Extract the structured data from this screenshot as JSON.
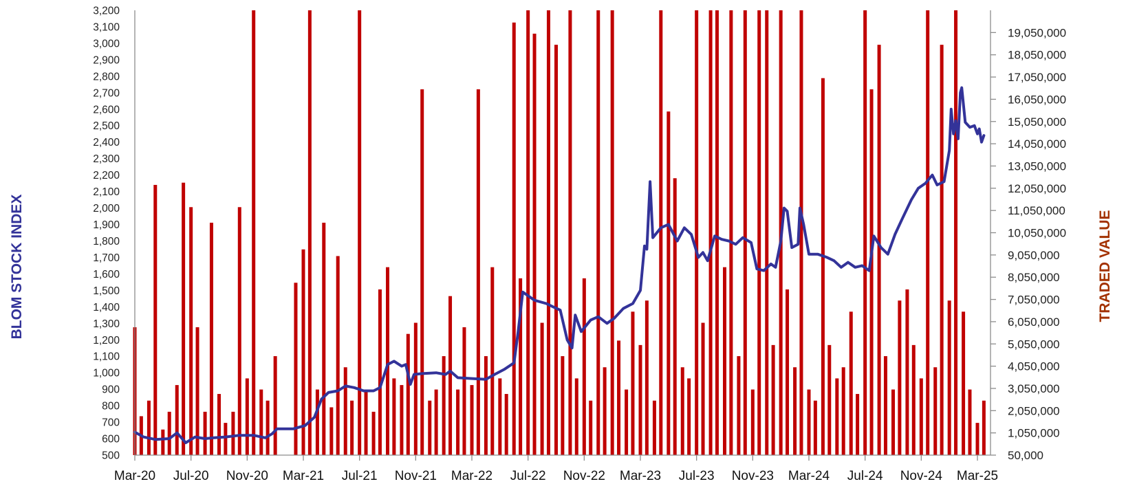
{
  "chart_data": {
    "type": "bar+line",
    "colors": {
      "index_line": "#333399",
      "traded_bars": "#c00000",
      "left_title": "#333399",
      "right_title": "#a33200",
      "axis": "#8c8c8c"
    },
    "left_axis": {
      "title": "BLOM STOCK INDEX",
      "range": [
        500,
        3200
      ],
      "ticks": [
        "500",
        "600",
        "700",
        "800",
        "900",
        "1,000",
        "1,100",
        "1,200",
        "1,300",
        "1,400",
        "1,500",
        "1,600",
        "1,700",
        "1,800",
        "1,900",
        "2,000",
        "2,100",
        "2,200",
        "2,300",
        "2,400",
        "2,500",
        "2,600",
        "2,700",
        "2,800",
        "2,900",
        "3,000",
        "3,100",
        "3,200"
      ]
    },
    "right_axis": {
      "title": "TRADED VALUE",
      "range": [
        50000,
        20050000
      ],
      "ticks": [
        "50,000",
        "1,050,000",
        "2,050,000",
        "3,050,000",
        "4,050,000",
        "5,050,000",
        "6,050,000",
        "7,050,000",
        "8,050,000",
        "9,050,000",
        "10,050,000",
        "11,050,000",
        "12,050,000",
        "13,050,000",
        "14,050,000",
        "15,050,000",
        "16,050,000",
        "17,050,000",
        "18,050,000",
        "19,050,000"
      ]
    },
    "x_axis": {
      "ticks": [
        "Mar-20",
        "Jul-20",
        "Nov-20",
        "Mar-21",
        "Jul-21",
        "Nov-21",
        "Mar-22",
        "Jul-22",
        "Nov-22",
        "Mar-23",
        "Jul-23",
        "Nov-23",
        "Mar-24",
        "Jul-24",
        "Nov-24",
        "Mar-25"
      ],
      "range": [
        "2020-03-01",
        "2025-04-01"
      ]
    },
    "grid": false,
    "legend": "none",
    "index_series": [
      [
        "2020-03-01",
        640
      ],
      [
        "2020-03-20",
        610
      ],
      [
        "2020-04-15",
        595
      ],
      [
        "2020-05-15",
        600
      ],
      [
        "2020-06-01",
        635
      ],
      [
        "2020-06-20",
        575
      ],
      [
        "2020-07-10",
        610
      ],
      [
        "2020-08-01",
        600
      ],
      [
        "2020-08-20",
        605
      ],
      [
        "2020-09-15",
        610
      ],
      [
        "2020-10-15",
        620
      ],
      [
        "2020-11-15",
        620
      ],
      [
        "2020-12-10",
        605
      ],
      [
        "2020-12-25",
        630
      ],
      [
        "2021-01-05",
        660
      ],
      [
        "2021-02-10",
        660
      ],
      [
        "2021-03-05",
        680
      ],
      [
        "2021-03-25",
        730
      ],
      [
        "2021-04-10",
        840
      ],
      [
        "2021-04-25",
        880
      ],
      [
        "2021-05-15",
        890
      ],
      [
        "2021-06-01",
        920
      ],
      [
        "2021-06-20",
        910
      ],
      [
        "2021-07-10",
        890
      ],
      [
        "2021-08-01",
        890
      ],
      [
        "2021-08-15",
        910
      ],
      [
        "2021-09-01",
        1050
      ],
      [
        "2021-09-15",
        1070
      ],
      [
        "2021-10-01",
        1040
      ],
      [
        "2021-10-10",
        1050
      ],
      [
        "2021-10-20",
        930
      ],
      [
        "2021-10-28",
        990
      ],
      [
        "2021-11-15",
        995
      ],
      [
        "2021-12-15",
        1000
      ],
      [
        "2022-01-05",
        990
      ],
      [
        "2022-01-15",
        1010
      ],
      [
        "2022-02-01",
        970
      ],
      [
        "2022-03-01",
        965
      ],
      [
        "2022-04-01",
        960
      ],
      [
        "2022-04-20",
        990
      ],
      [
        "2022-05-10",
        1020
      ],
      [
        "2022-06-01",
        1060
      ],
      [
        "2022-06-10",
        1250
      ],
      [
        "2022-06-20",
        1490
      ],
      [
        "2022-07-15",
        1440
      ],
      [
        "2022-08-10",
        1420
      ],
      [
        "2022-08-25",
        1400
      ],
      [
        "2022-09-10",
        1380
      ],
      [
        "2022-09-25",
        1200
      ],
      [
        "2022-10-05",
        1150
      ],
      [
        "2022-10-12",
        1350
      ],
      [
        "2022-10-25",
        1250
      ],
      [
        "2022-11-15",
        1320
      ],
      [
        "2022-12-01",
        1340
      ],
      [
        "2022-12-20",
        1300
      ],
      [
        "2023-01-05",
        1330
      ],
      [
        "2023-01-25",
        1390
      ],
      [
        "2023-02-15",
        1420
      ],
      [
        "2023-03-01",
        1500
      ],
      [
        "2023-03-10",
        1770
      ],
      [
        "2023-03-15",
        1750
      ],
      [
        "2023-03-22",
        2160
      ],
      [
        "2023-03-28",
        1820
      ],
      [
        "2023-04-15",
        1880
      ],
      [
        "2023-05-01",
        1900
      ],
      [
        "2023-05-20",
        1800
      ],
      [
        "2023-06-05",
        1880
      ],
      [
        "2023-06-20",
        1840
      ],
      [
        "2023-07-05",
        1700
      ],
      [
        "2023-07-15",
        1730
      ],
      [
        "2023-07-25",
        1680
      ],
      [
        "2023-08-10",
        1830
      ],
      [
        "2023-08-25",
        1810
      ],
      [
        "2023-09-10",
        1800
      ],
      [
        "2023-09-25",
        1780
      ],
      [
        "2023-10-10",
        1820
      ],
      [
        "2023-10-28",
        1790
      ],
      [
        "2023-11-10",
        1630
      ],
      [
        "2023-11-25",
        1620
      ],
      [
        "2023-12-10",
        1660
      ],
      [
        "2023-12-20",
        1640
      ],
      [
        "2024-01-01",
        1800
      ],
      [
        "2024-01-08",
        2000
      ],
      [
        "2024-01-15",
        1980
      ],
      [
        "2024-01-25",
        1760
      ],
      [
        "2024-02-08",
        1780
      ],
      [
        "2024-02-12",
        2000
      ],
      [
        "2024-02-20",
        1900
      ],
      [
        "2024-03-01",
        1720
      ],
      [
        "2024-03-20",
        1720
      ],
      [
        "2024-04-10",
        1700
      ],
      [
        "2024-04-25",
        1680
      ],
      [
        "2024-05-10",
        1640
      ],
      [
        "2024-05-25",
        1670
      ],
      [
        "2024-06-10",
        1640
      ],
      [
        "2024-06-25",
        1650
      ],
      [
        "2024-07-10",
        1620
      ],
      [
        "2024-07-20",
        1830
      ],
      [
        "2024-08-05",
        1760
      ],
      [
        "2024-08-20",
        1720
      ],
      [
        "2024-09-05",
        1840
      ],
      [
        "2024-09-20",
        1930
      ],
      [
        "2024-10-10",
        2050
      ],
      [
        "2024-10-25",
        2120
      ],
      [
        "2024-11-10",
        2150
      ],
      [
        "2024-11-25",
        2200
      ],
      [
        "2024-12-05",
        2140
      ],
      [
        "2024-12-20",
        2160
      ],
      [
        "2025-01-01",
        2350
      ],
      [
        "2025-01-05",
        2600
      ],
      [
        "2025-01-10",
        2450
      ],
      [
        "2025-01-15",
        2530
      ],
      [
        "2025-01-20",
        2420
      ],
      [
        "2025-01-25",
        2700
      ],
      [
        "2025-01-28",
        2730
      ],
      [
        "2025-02-05",
        2520
      ],
      [
        "2025-02-15",
        2490
      ],
      [
        "2025-02-25",
        2500
      ],
      [
        "2025-03-01",
        2450
      ],
      [
        "2025-03-05",
        2480
      ],
      [
        "2025-03-10",
        2400
      ],
      [
        "2025-03-15",
        2440
      ]
    ],
    "traded_value_series": [
      [
        "2020-03-01",
        5800000
      ],
      [
        "2020-03-15",
        1800000
      ],
      [
        "2020-04-01",
        2500000
      ],
      [
        "2020-04-15",
        12200000
      ],
      [
        "2020-05-01",
        1200000
      ],
      [
        "2020-05-15",
        2000000
      ],
      [
        "2020-06-01",
        3200000
      ],
      [
        "2020-06-15",
        12300000
      ],
      [
        "2020-07-01",
        11200000
      ],
      [
        "2020-07-15",
        5800000
      ],
      [
        "2020-08-01",
        2000000
      ],
      [
        "2020-08-15",
        10500000
      ],
      [
        "2020-09-01",
        2800000
      ],
      [
        "2020-09-15",
        1500000
      ],
      [
        "2020-10-01",
        2000000
      ],
      [
        "2020-10-15",
        11200000
      ],
      [
        "2020-11-01",
        3500000
      ],
      [
        "2020-11-15",
        20500000
      ],
      [
        "2020-12-01",
        3000000
      ],
      [
        "2020-12-15",
        2500000
      ],
      [
        "2021-01-01",
        4500000
      ],
      [
        "2021-01-15",
        0
      ],
      [
        "2021-02-01",
        0
      ],
      [
        "2021-02-15",
        7800000
      ],
      [
        "2021-03-01",
        9300000
      ],
      [
        "2021-03-15",
        21000000
      ],
      [
        "2021-04-01",
        3000000
      ],
      [
        "2021-04-15",
        10500000
      ],
      [
        "2021-05-01",
        2200000
      ],
      [
        "2021-05-15",
        9000000
      ],
      [
        "2021-06-01",
        4000000
      ],
      [
        "2021-06-15",
        2500000
      ],
      [
        "2021-07-01",
        21000000
      ],
      [
        "2021-07-15",
        3000000
      ],
      [
        "2021-08-01",
        2000000
      ],
      [
        "2021-08-15",
        7500000
      ],
      [
        "2021-09-01",
        8500000
      ],
      [
        "2021-09-15",
        3500000
      ],
      [
        "2021-10-01",
        3200000
      ],
      [
        "2021-10-15",
        5500000
      ],
      [
        "2021-11-01",
        6000000
      ],
      [
        "2021-11-15",
        16500000
      ],
      [
        "2021-12-01",
        2500000
      ],
      [
        "2021-12-15",
        3000000
      ],
      [
        "2022-01-01",
        4500000
      ],
      [
        "2022-01-15",
        7200000
      ],
      [
        "2022-02-01",
        3000000
      ],
      [
        "2022-02-15",
        5800000
      ],
      [
        "2022-03-01",
        3200000
      ],
      [
        "2022-03-15",
        16500000
      ],
      [
        "2022-04-01",
        4500000
      ],
      [
        "2022-04-15",
        8500000
      ],
      [
        "2022-05-01",
        3500000
      ],
      [
        "2022-05-15",
        2800000
      ],
      [
        "2022-06-01",
        19500000
      ],
      [
        "2022-06-15",
        8000000
      ],
      [
        "2022-07-01",
        20500000
      ],
      [
        "2022-07-15",
        19000000
      ],
      [
        "2022-08-01",
        6000000
      ],
      [
        "2022-08-15",
        20500000
      ],
      [
        "2022-09-01",
        18500000
      ],
      [
        "2022-09-15",
        4500000
      ],
      [
        "2022-10-01",
        20500000
      ],
      [
        "2022-10-15",
        3500000
      ],
      [
        "2022-11-01",
        8000000
      ],
      [
        "2022-11-15",
        2500000
      ],
      [
        "2022-12-01",
        20500000
      ],
      [
        "2022-12-15",
        4000000
      ],
      [
        "2023-01-01",
        20500000
      ],
      [
        "2023-01-15",
        5200000
      ],
      [
        "2023-02-01",
        3000000
      ],
      [
        "2023-02-15",
        6500000
      ],
      [
        "2023-03-01",
        5000000
      ],
      [
        "2023-03-15",
        7000000
      ],
      [
        "2023-04-01",
        2500000
      ],
      [
        "2023-04-15",
        20500000
      ],
      [
        "2023-05-01",
        15500000
      ],
      [
        "2023-05-15",
        12500000
      ],
      [
        "2023-06-01",
        4000000
      ],
      [
        "2023-06-15",
        3500000
      ],
      [
        "2023-07-01",
        20500000
      ],
      [
        "2023-07-15",
        6000000
      ],
      [
        "2023-08-01",
        20500000
      ],
      [
        "2023-08-15",
        20500000
      ],
      [
        "2023-09-01",
        8500000
      ],
      [
        "2023-09-15",
        20500000
      ],
      [
        "2023-10-01",
        4500000
      ],
      [
        "2023-10-15",
        20500000
      ],
      [
        "2023-11-01",
        3000000
      ],
      [
        "2023-11-15",
        20500000
      ],
      [
        "2023-12-01",
        20500000
      ],
      [
        "2023-12-15",
        5000000
      ],
      [
        "2024-01-01",
        20500000
      ],
      [
        "2024-01-15",
        7500000
      ],
      [
        "2024-02-01",
        4000000
      ],
      [
        "2024-02-15",
        20500000
      ],
      [
        "2024-03-01",
        3000000
      ],
      [
        "2024-03-15",
        2500000
      ],
      [
        "2024-04-01",
        17000000
      ],
      [
        "2024-04-15",
        5000000
      ],
      [
        "2024-05-01",
        3500000
      ],
      [
        "2024-05-15",
        4000000
      ],
      [
        "2024-06-01",
        6500000
      ],
      [
        "2024-06-15",
        2800000
      ],
      [
        "2024-07-01",
        20500000
      ],
      [
        "2024-07-15",
        16500000
      ],
      [
        "2024-08-01",
        18500000
      ],
      [
        "2024-08-15",
        4500000
      ],
      [
        "2024-09-01",
        3000000
      ],
      [
        "2024-09-15",
        7000000
      ],
      [
        "2024-10-01",
        7500000
      ],
      [
        "2024-10-15",
        5000000
      ],
      [
        "2024-11-01",
        3500000
      ],
      [
        "2024-11-15",
        20500000
      ],
      [
        "2024-12-01",
        4000000
      ],
      [
        "2024-12-15",
        18500000
      ],
      [
        "2025-01-01",
        7000000
      ],
      [
        "2025-01-15",
        20500000
      ],
      [
        "2025-02-01",
        6500000
      ],
      [
        "2025-02-15",
        3000000
      ],
      [
        "2025-03-01",
        1500000
      ],
      [
        "2025-03-15",
        2500000
      ]
    ]
  }
}
